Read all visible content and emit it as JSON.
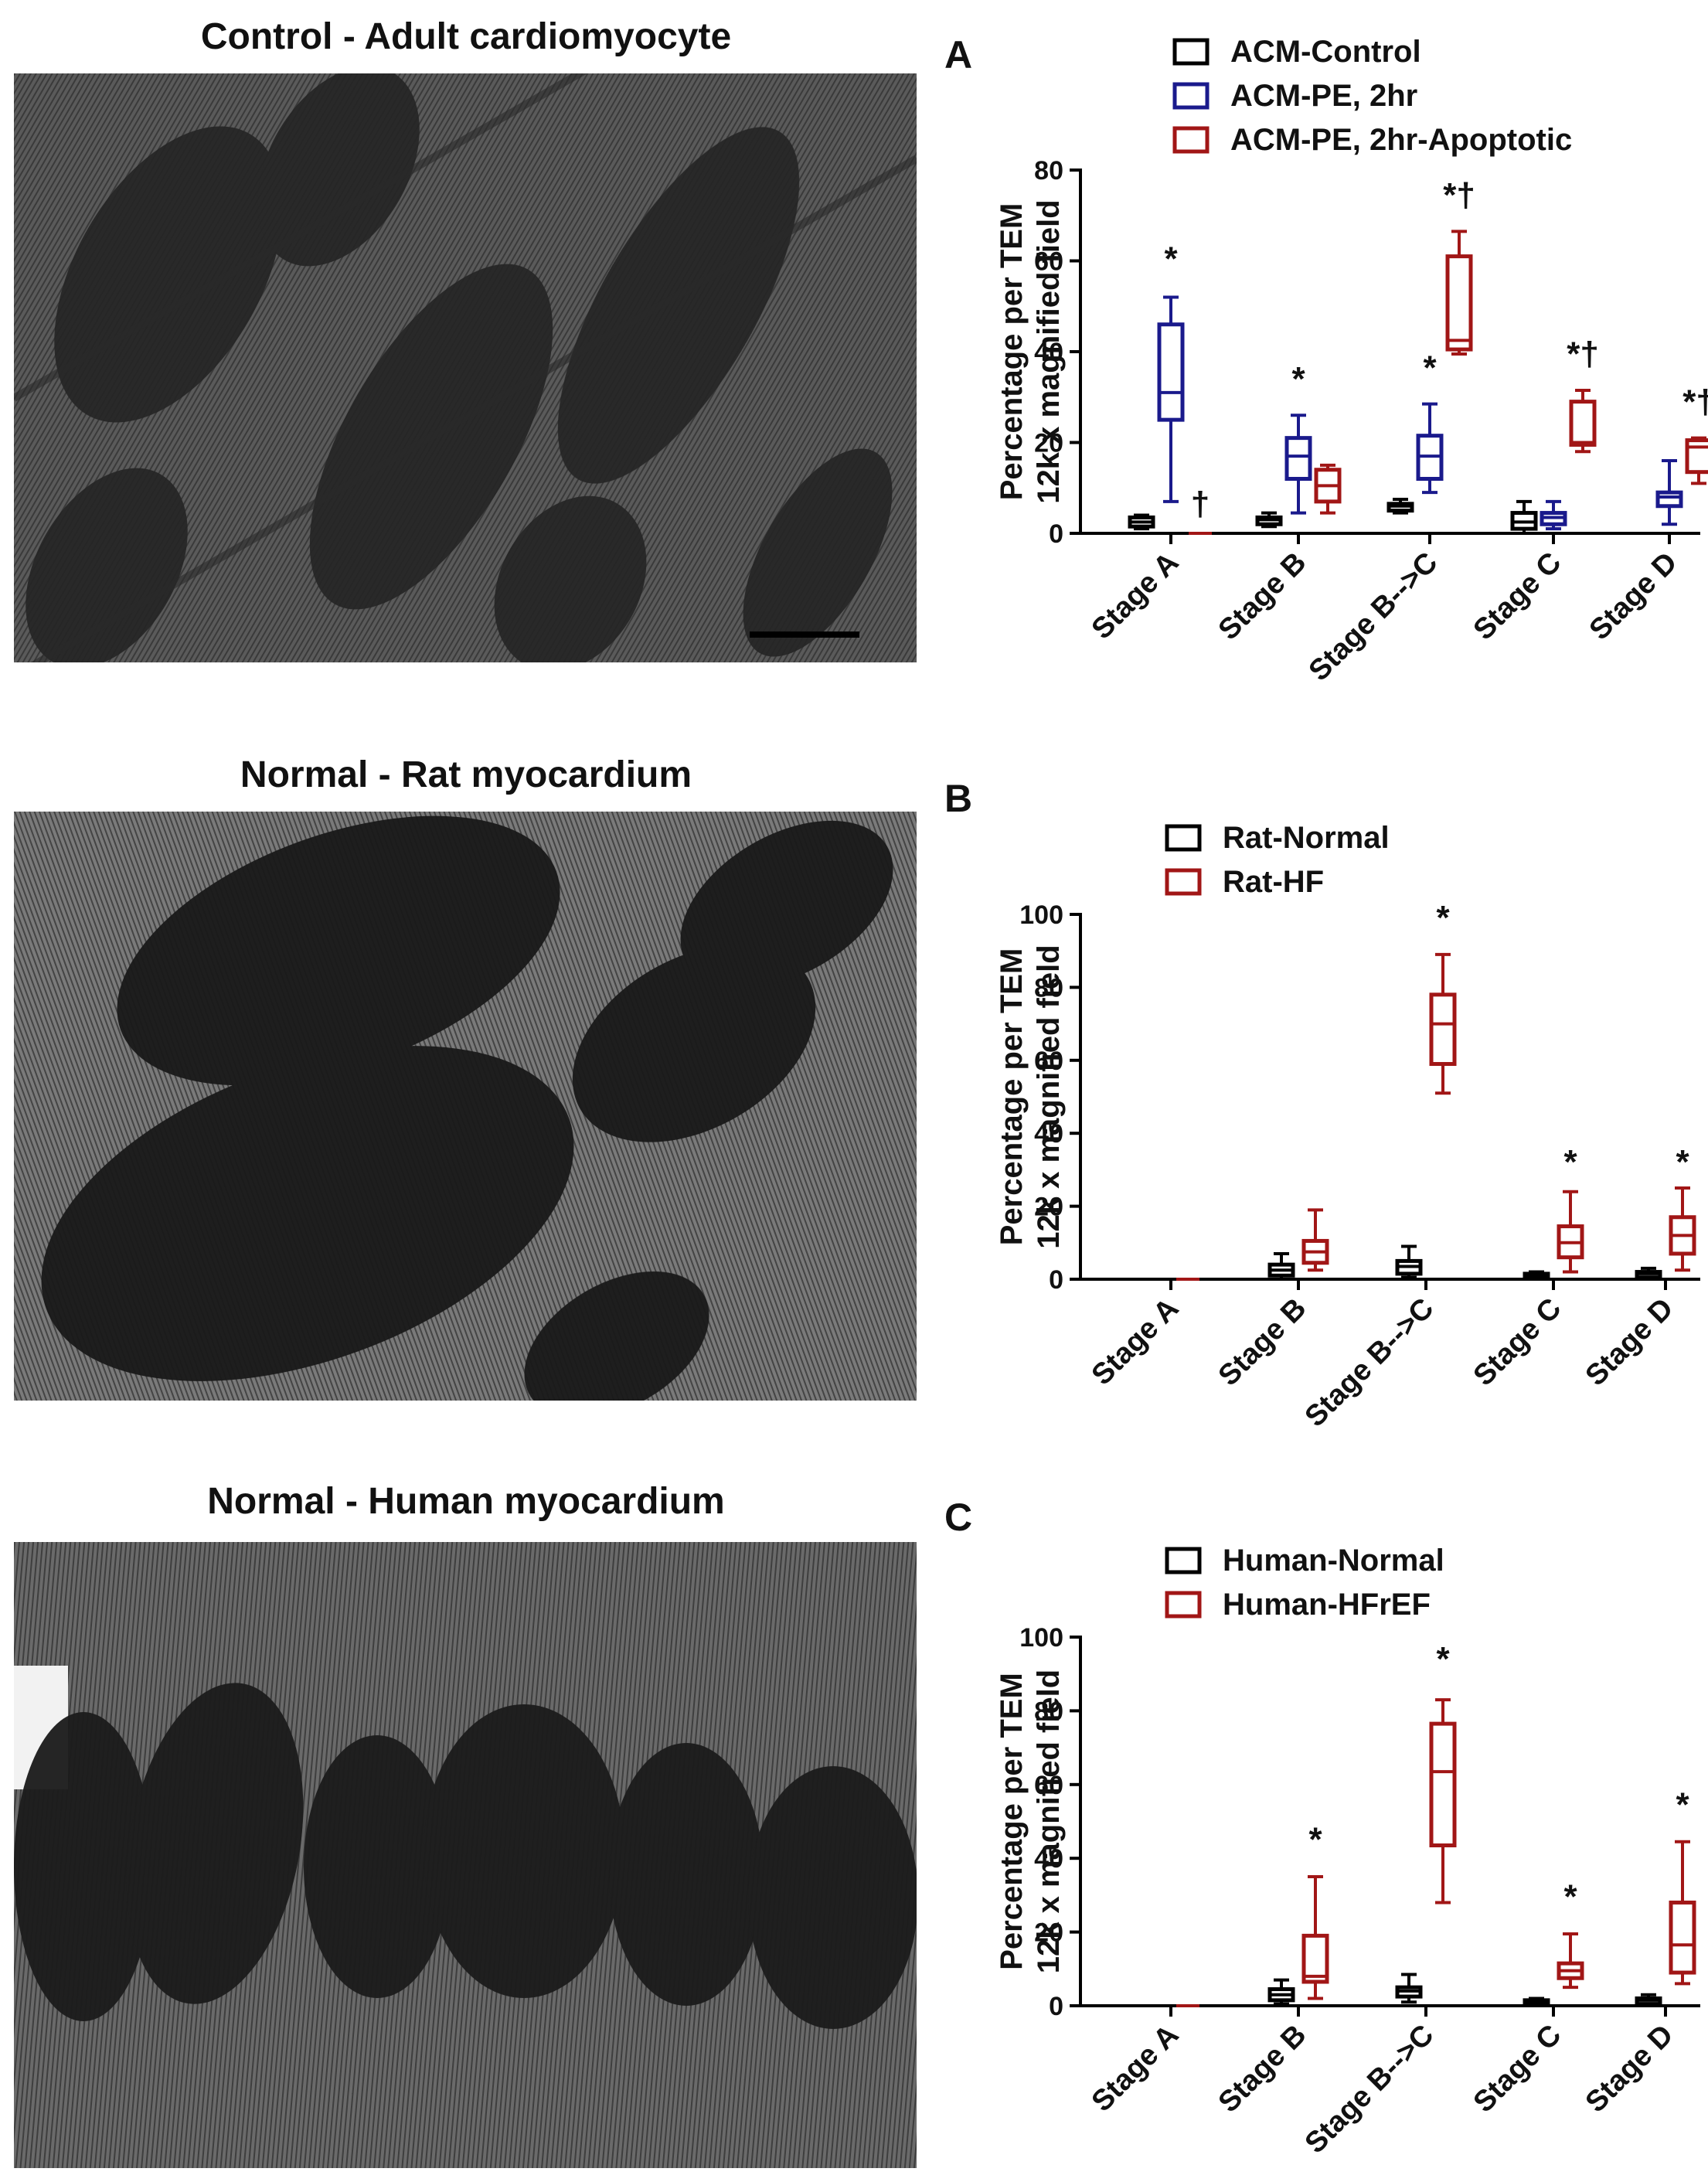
{
  "images": [
    {
      "title": "Control - Adult cardiomyocyte",
      "tone": "#3a3a3a",
      "accent": "#1e1e1e",
      "scale_bar": true
    },
    {
      "title": "Normal - Rat myocardium",
      "tone": "#454545",
      "accent": "#161616",
      "scale_bar": false
    },
    {
      "title": "Normal - Human myocardium",
      "tone": "#4a4a4a",
      "accent": "#1a1a1a",
      "scale_bar": false
    }
  ],
  "chart_data": [
    {
      "panel": "A",
      "type": "boxplot",
      "ylabel_line1": "Percentage per TEM",
      "ylabel_line2": "12k x magnified field",
      "ylim": [
        0,
        80
      ],
      "yticks": [
        0,
        20,
        40,
        60,
        80
      ],
      "categories": [
        "Stage A",
        "Stage B",
        "Stage B-->C",
        "Stage C",
        "Stage D"
      ],
      "legend_position": "top",
      "series": [
        {
          "name": "ACM-Control",
          "color": "#000000",
          "boxes": [
            {
              "min": 1,
              "q1": 1.5,
              "median": 2.5,
              "q3": 3.5,
              "max": 4
            },
            {
              "min": 1.5,
              "q1": 2,
              "median": 3,
              "q3": 3.5,
              "max": 4.5
            },
            {
              "min": 4.5,
              "q1": 5,
              "median": 6,
              "q3": 6.5,
              "max": 7.5
            },
            {
              "min": 0,
              "q1": 1,
              "median": 2.5,
              "q3": 4.5,
              "max": 7
            },
            {
              "min": 0,
              "q1": 0,
              "median": 0,
              "q3": 0,
              "max": 0
            }
          ]
        },
        {
          "name": "ACM-PE, 2hr",
          "color": "#1a1a8c",
          "boxes": [
            {
              "min": 7,
              "q1": 25,
              "median": 31,
              "q3": 46,
              "max": 52
            },
            {
              "min": 4.5,
              "q1": 12,
              "median": 17,
              "q3": 21,
              "max": 26
            },
            {
              "min": 9,
              "q1": 12,
              "median": 17,
              "q3": 21.5,
              "max": 28.5
            },
            {
              "min": 1,
              "q1": 2,
              "median": 3.5,
              "q3": 4.5,
              "max": 7
            },
            {
              "min": 2,
              "q1": 6,
              "median": 8,
              "q3": 9,
              "max": 16
            }
          ]
        },
        {
          "name": "ACM-PE, 2hr-Apoptotic",
          "color": "#a11616",
          "boxes": [
            {
              "min": 0,
              "q1": 0,
              "median": 0,
              "q3": 0,
              "max": 0
            },
            {
              "min": 4.5,
              "q1": 7,
              "median": 10.5,
              "q3": 14,
              "max": 15
            },
            {
              "min": 39.5,
              "q1": 40.5,
              "median": 42.5,
              "q3": 61,
              "max": 66.5
            },
            {
              "min": 18,
              "q1": 19.5,
              "median": 20,
              "q3": 29,
              "max": 31.5
            },
            {
              "min": 11,
              "q1": 13.5,
              "median": 19,
              "q3": 20.5,
              "max": 21
            }
          ]
        }
      ],
      "annotations": [
        {
          "category": "Stage A",
          "series": 1,
          "text": "*",
          "y": 58
        },
        {
          "category": "Stage A",
          "series": 2,
          "text": "†",
          "y": 4
        },
        {
          "category": "Stage B",
          "series": 1,
          "text": "*",
          "y": 31.5
        },
        {
          "category": "Stage B-->C",
          "series": 1,
          "text": "*",
          "y": 34
        },
        {
          "category": "Stage B-->C",
          "series": 2,
          "text": "*†",
          "y": 72
        },
        {
          "category": "Stage C",
          "series": 2,
          "text": "*†",
          "y": 37
        },
        {
          "category": "Stage D",
          "series": 2,
          "text": "*†",
          "y": 26.5
        }
      ]
    },
    {
      "panel": "B",
      "type": "boxplot",
      "ylabel_line1": "Percentage per TEM",
      "ylabel_line2": "12k x magnified field",
      "ylim": [
        0,
        100
      ],
      "yticks": [
        0,
        20,
        40,
        60,
        80,
        100
      ],
      "categories": [
        "Stage A",
        "Stage B",
        "Stage B-->C",
        "Stage C",
        "Stage D"
      ],
      "legend_position": "top",
      "series": [
        {
          "name": "Rat-Normal",
          "color": "#000000",
          "boxes": [
            {
              "min": 0,
              "q1": 0,
              "median": 0,
              "q3": 0,
              "max": 0
            },
            {
              "min": 0,
              "q1": 1,
              "median": 2.5,
              "q3": 4,
              "max": 7
            },
            {
              "min": 0.5,
              "q1": 1.5,
              "median": 3.5,
              "q3": 5,
              "max": 9
            },
            {
              "min": 0,
              "q1": 0.5,
              "median": 1,
              "q3": 1.5,
              "max": 2
            },
            {
              "min": 0,
              "q1": 0.5,
              "median": 1.5,
              "q3": 2,
              "max": 3
            }
          ]
        },
        {
          "name": "Rat-HF",
          "color": "#a11616",
          "boxes": [
            {
              "min": 0,
              "q1": 0,
              "median": 0,
              "q3": 0,
              "max": 0
            },
            {
              "min": 2.5,
              "q1": 4.5,
              "median": 7.5,
              "q3": 10.5,
              "max": 19
            },
            {
              "min": 51,
              "q1": 59,
              "median": 70,
              "q3": 78,
              "max": 89
            },
            {
              "min": 2,
              "q1": 6,
              "median": 10,
              "q3": 14.5,
              "max": 24
            },
            {
              "min": 2.5,
              "q1": 7,
              "median": 12,
              "q3": 17,
              "max": 25
            }
          ]
        }
      ],
      "annotations": [
        {
          "category": "Stage B-->C",
          "series": 1,
          "text": "*",
          "y": 96
        },
        {
          "category": "Stage C",
          "series": 1,
          "text": "*",
          "y": 29
        },
        {
          "category": "Stage D",
          "series": 1,
          "text": "*",
          "y": 29
        }
      ]
    },
    {
      "panel": "C",
      "type": "boxplot",
      "ylabel_line1": "Percentage per TEM",
      "ylabel_line2": "12k x magnified field",
      "ylim": [
        0,
        100
      ],
      "yticks": [
        0,
        20,
        40,
        60,
        80,
        100
      ],
      "categories": [
        "Stage A",
        "Stage B",
        "Stage B-->C",
        "Stage C",
        "Stage D"
      ],
      "legend_position": "top",
      "series": [
        {
          "name": "Human-Normal",
          "color": "#000000",
          "boxes": [
            {
              "min": 0,
              "q1": 0,
              "median": 0,
              "q3": 0,
              "max": 0
            },
            {
              "min": 0.5,
              "q1": 1.5,
              "median": 3,
              "q3": 4.5,
              "max": 7
            },
            {
              "min": 1,
              "q1": 2.5,
              "median": 4,
              "q3": 5,
              "max": 8.5
            },
            {
              "min": 0,
              "q1": 0.5,
              "median": 1,
              "q3": 1.5,
              "max": 2
            },
            {
              "min": 0,
              "q1": 0.5,
              "median": 1.5,
              "q3": 2,
              "max": 3
            }
          ]
        },
        {
          "name": "Human-HFrEF",
          "color": "#a11616",
          "boxes": [
            {
              "min": 0,
              "q1": 0,
              "median": 0,
              "q3": 0,
              "max": 0
            },
            {
              "min": 2,
              "q1": 6.5,
              "median": 8,
              "q3": 19,
              "max": 35
            },
            {
              "min": 28,
              "q1": 43.5,
              "median": 63.5,
              "q3": 76.5,
              "max": 83
            },
            {
              "min": 5,
              "q1": 7.5,
              "median": 9.5,
              "q3": 11.5,
              "max": 19.5
            },
            {
              "min": 6,
              "q1": 9,
              "median": 16.5,
              "q3": 28,
              "max": 44.5
            }
          ]
        }
      ],
      "annotations": [
        {
          "category": "Stage B",
          "series": 1,
          "text": "*",
          "y": 42
        },
        {
          "category": "Stage B-->C",
          "series": 1,
          "text": "*",
          "y": 91
        },
        {
          "category": "Stage C",
          "series": 1,
          "text": "*",
          "y": 26.5
        },
        {
          "category": "Stage D",
          "series": 1,
          "text": "*",
          "y": 51.5
        }
      ]
    }
  ]
}
